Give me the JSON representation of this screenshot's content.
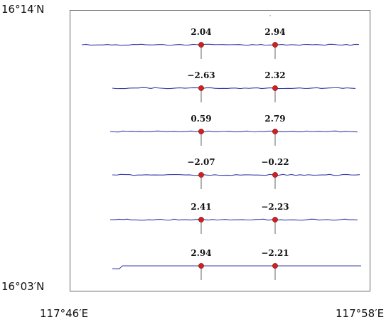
{
  "coordinates": {
    "lat_top": "16°14′N",
    "lat_bottom": "16°03′N",
    "lon_left": "117°46′E",
    "lon_right": "117°58′E"
  },
  "profiles": [
    {
      "left_value": "2.04",
      "right_value": "2.94"
    },
    {
      "left_value": "−2.63",
      "right_value": "2.32"
    },
    {
      "left_value": "0.59",
      "right_value": "2.79"
    },
    {
      "left_value": "−2.07",
      "right_value": "−0.22"
    },
    {
      "left_value": "2.41",
      "right_value": "−2.23"
    },
    {
      "left_value": "2.94",
      "right_value": "−2.21"
    }
  ],
  "colors": {
    "profile_line": "#3a3fa8",
    "marker": "#d41f1f",
    "marker_stroke": "#7a0e0e",
    "frame": "#666666"
  }
}
